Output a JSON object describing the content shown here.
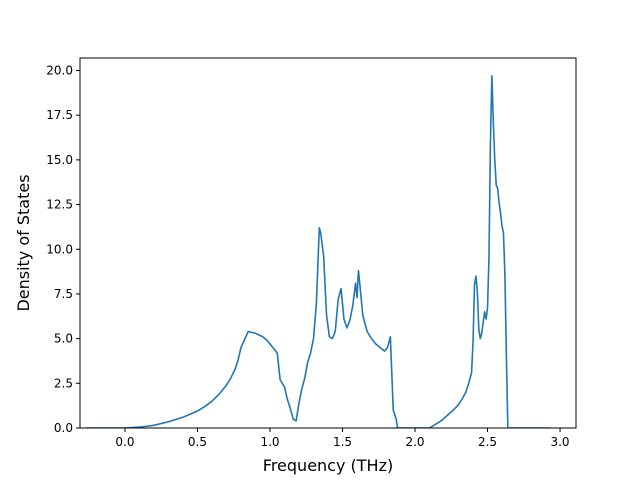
{
  "chart_data": {
    "type": "line",
    "title": "",
    "xlabel": "Frequency (THz)",
    "ylabel": "Density of States",
    "xlim": [
      -0.31,
      3.11
    ],
    "ylim": [
      0,
      20.7
    ],
    "grid": false,
    "line_color": "#1f77b4",
    "x_ticks": [
      0.0,
      0.5,
      1.0,
      1.5,
      2.0,
      2.5,
      3.0
    ],
    "x_tick_labels": [
      "0.0",
      "0.5",
      "1.0",
      "1.5",
      "2.0",
      "2.5",
      "3.0"
    ],
    "y_ticks": [
      0.0,
      2.5,
      5.0,
      7.5,
      10.0,
      12.5,
      15.0,
      17.5,
      20.0
    ],
    "y_tick_labels": [
      "0.0",
      "2.5",
      "5.0",
      "7.5",
      "10.0",
      "12.5",
      "15.0",
      "17.5",
      "20.0"
    ],
    "series": [
      {
        "x": [
          -0.27,
          -0.05,
          0.0,
          0.1,
          0.2,
          0.3,
          0.4,
          0.5,
          0.55,
          0.6,
          0.65,
          0.7,
          0.73,
          0.76,
          0.78,
          0.8,
          0.85,
          0.9,
          0.95,
          0.98,
          1.0,
          1.02,
          1.05,
          1.07,
          1.1,
          1.12,
          1.14,
          1.16,
          1.18,
          1.2,
          1.22,
          1.24,
          1.26,
          1.28,
          1.3,
          1.32,
          1.34,
          1.35,
          1.37,
          1.39,
          1.41,
          1.43,
          1.45,
          1.47,
          1.49,
          1.51,
          1.53,
          1.55,
          1.57,
          1.59,
          1.6,
          1.61,
          1.62,
          1.64,
          1.67,
          1.7,
          1.73,
          1.76,
          1.79,
          1.81,
          1.83,
          1.85,
          1.87,
          1.88,
          1.9,
          2.0,
          2.1,
          2.18,
          2.25,
          2.3,
          2.33,
          2.35,
          2.37,
          2.39,
          2.4,
          2.41,
          2.42,
          2.43,
          2.44,
          2.45,
          2.46,
          2.47,
          2.48,
          2.49,
          2.5,
          2.51,
          2.52,
          2.53,
          2.54,
          2.55,
          2.56,
          2.57,
          2.58,
          2.59,
          2.6,
          2.61,
          2.62,
          2.63,
          2.64,
          2.65,
          2.66,
          2.67,
          2.8,
          2.93
        ],
        "y": [
          0.0,
          0.0,
          0.0,
          0.05,
          0.15,
          0.35,
          0.6,
          0.95,
          1.2,
          1.5,
          1.9,
          2.4,
          2.8,
          3.3,
          3.8,
          4.5,
          5.4,
          5.3,
          5.1,
          4.9,
          4.7,
          4.5,
          4.2,
          2.7,
          2.3,
          1.6,
          1.1,
          0.5,
          0.4,
          1.4,
          2.2,
          2.8,
          3.7,
          4.2,
          5.0,
          7.0,
          11.2,
          10.9,
          9.6,
          6.3,
          5.1,
          5.0,
          5.4,
          7.2,
          7.8,
          6.1,
          5.6,
          6.0,
          6.8,
          8.1,
          7.3,
          8.8,
          8.0,
          6.3,
          5.4,
          5.0,
          4.7,
          4.5,
          4.3,
          4.5,
          5.1,
          1.0,
          0.5,
          0.0,
          0.0,
          0.0,
          0.0,
          0.4,
          0.9,
          1.3,
          1.7,
          2.0,
          2.5,
          3.1,
          4.8,
          8.0,
          8.5,
          7.6,
          5.5,
          5.0,
          5.3,
          5.9,
          6.5,
          6.1,
          6.7,
          9.6,
          16.0,
          19.7,
          17.1,
          15.0,
          13.6,
          13.4,
          12.6,
          12.0,
          11.3,
          10.9,
          8.5,
          4.0,
          0.0,
          0.0,
          0.0,
          0.0,
          0.0,
          0.0
        ]
      }
    ]
  }
}
